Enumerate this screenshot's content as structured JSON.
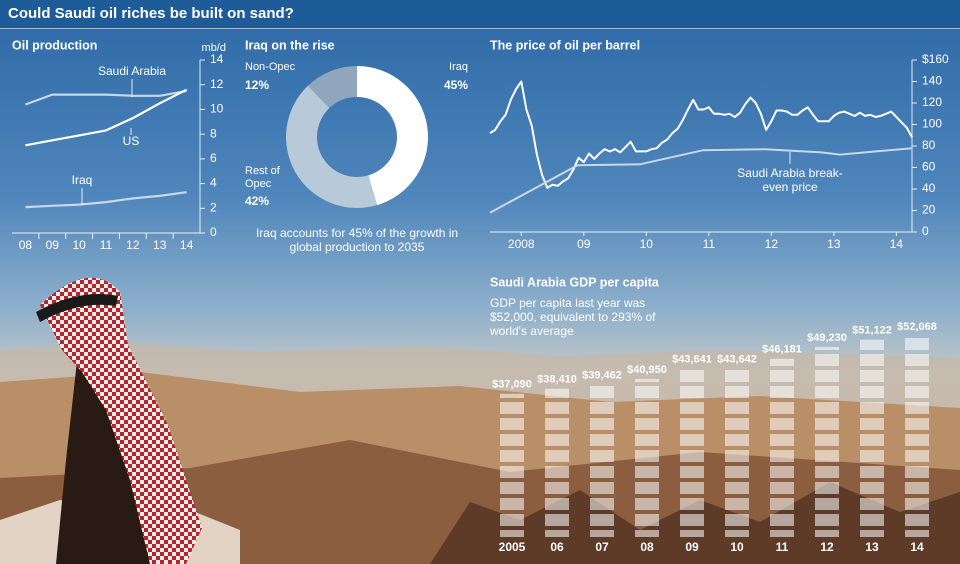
{
  "title": "Could Saudi oil riches be built on sand?",
  "chart_data": [
    {
      "type": "line",
      "title": "Oil production",
      "unit": "mb/d",
      "categories": [
        "08",
        "09",
        "10",
        "11",
        "12",
        "13",
        "14"
      ],
      "series": [
        {
          "name": "Saudi Arabia",
          "color": "#c9d7e6",
          "values": [
            10.4,
            11.2,
            11.2,
            11.2,
            11.1,
            11.1,
            11.5
          ]
        },
        {
          "name": "US",
          "color": "#ffffff",
          "values": [
            7.1,
            7.5,
            7.9,
            8.3,
            9.3,
            10.5,
            11.6
          ]
        },
        {
          "name": "Iraq",
          "color": "#c9d7e6",
          "values": [
            2.1,
            2.2,
            2.3,
            2.5,
            2.8,
            3.0,
            3.3
          ]
        }
      ],
      "ylim": [
        0,
        14
      ],
      "yticks": [
        0,
        2,
        4,
        6,
        8,
        10,
        12,
        14
      ]
    },
    {
      "type": "pie",
      "title": "Iraq on the rise",
      "categories": [
        "Iraq",
        "Rest of Opec",
        "Non-Opec"
      ],
      "values": [
        45,
        42,
        12
      ],
      "value_labels": [
        "45%",
        "42%",
        "12%"
      ],
      "colors": [
        "#ffffff",
        "#b8c9da",
        "#8fa6bd"
      ],
      "annotation": "Iraq accounts for 45% of the growth in global production to 2035"
    },
    {
      "type": "line",
      "title": "The price of oil per barrel",
      "xlim": [
        2008,
        2014.75
      ],
      "xticks": [
        {
          "value": 2008.5,
          "label": "2008"
        },
        {
          "value": 2009.5,
          "label": "09"
        },
        {
          "value": 2010.5,
          "label": "10"
        },
        {
          "value": 2011.5,
          "label": "11"
        },
        {
          "value": 2012.5,
          "label": "12"
        },
        {
          "value": 2013.5,
          "label": "13"
        },
        {
          "value": 2014.5,
          "label": "14"
        }
      ],
      "ylim": [
        0,
        160
      ],
      "yticks": [
        0,
        20,
        40,
        60,
        80,
        100,
        120,
        140,
        {
          "value": 160,
          "label": "$160"
        }
      ],
      "series": [
        {
          "color": "#ffffff",
          "x": [
            2008,
            2008.083,
            2008.167,
            2008.25,
            2008.333,
            2008.417,
            2008.5,
            2008.583,
            2008.667,
            2008.75,
            2008.833,
            2008.917,
            2009,
            2009.083,
            2009.167,
            2009.25,
            2009.333,
            2009.417,
            2009.5,
            2009.583,
            2009.667,
            2009.75,
            2009.833,
            2009.917,
            2010,
            2010.083,
            2010.167,
            2010.25,
            2010.333,
            2010.417,
            2010.5,
            2010.583,
            2010.667,
            2010.75,
            2010.833,
            2010.917,
            2011,
            2011.083,
            2011.167,
            2011.25,
            2011.333,
            2011.417,
            2011.5,
            2011.583,
            2011.667,
            2011.75,
            2011.833,
            2011.917,
            2012,
            2012.083,
            2012.167,
            2012.25,
            2012.333,
            2012.417,
            2012.5,
            2012.583,
            2012.667,
            2012.75,
            2012.833,
            2012.917,
            2013,
            2013.083,
            2013.167,
            2013.25,
            2013.333,
            2013.417,
            2013.5,
            2013.583,
            2013.667,
            2013.75,
            2013.833,
            2013.917,
            2014,
            2014.083,
            2014.167,
            2014.25,
            2014.333,
            2014.417,
            2014.5,
            2014.583,
            2014.667,
            2014.75
          ],
          "values": [
            92,
            95,
            103,
            109,
            123,
            133,
            140,
            114,
            99,
            72,
            53,
            41,
            44,
            43,
            47,
            50,
            58,
            69,
            65,
            73,
            68,
            73,
            77,
            75,
            77,
            74,
            79,
            84,
            75,
            75,
            75,
            77,
            78,
            83,
            86,
            92,
            96,
            104,
            114,
            123,
            114,
            114,
            116,
            110,
            110,
            109,
            110,
            107,
            111,
            119,
            125,
            120,
            110,
            95,
            103,
            113,
            113,
            112,
            109,
            109,
            113,
            116,
            109,
            103,
            103,
            103,
            108,
            111,
            112,
            110,
            108,
            111,
            108,
            109,
            107,
            108,
            110,
            112,
            107,
            102,
            97,
            88
          ]
        },
        {
          "name": "Saudi Arabia break-even price",
          "color": "#c9d7e6",
          "x": [
            2008,
            2009.4,
            2010.4,
            2011.4,
            2012.4,
            2013.3,
            2013.6,
            2014.75
          ],
          "values": [
            18,
            62,
            63,
            76,
            77,
            74,
            72,
            78
          ]
        }
      ]
    },
    {
      "type": "bar",
      "title": "Saudi Arabia GDP per capita",
      "subtitle": "GDP per capita last year was $52,000, equivalent to 293% of world's average",
      "categories": [
        "2005",
        "06",
        "07",
        "08",
        "09",
        "10",
        "11",
        "12",
        "13",
        "14"
      ],
      "values": [
        37090,
        38410,
        39462,
        40950,
        43641,
        43642,
        46181,
        49230,
        51122,
        52068
      ],
      "value_labels": [
        "$37,090",
        "$38,410",
        "$39,462",
        "$40,950",
        "$43,641",
        "$43,642",
        "$46,181",
        "$49,230",
        "$51,122",
        "$52,068"
      ],
      "color": "#ffffff"
    }
  ]
}
